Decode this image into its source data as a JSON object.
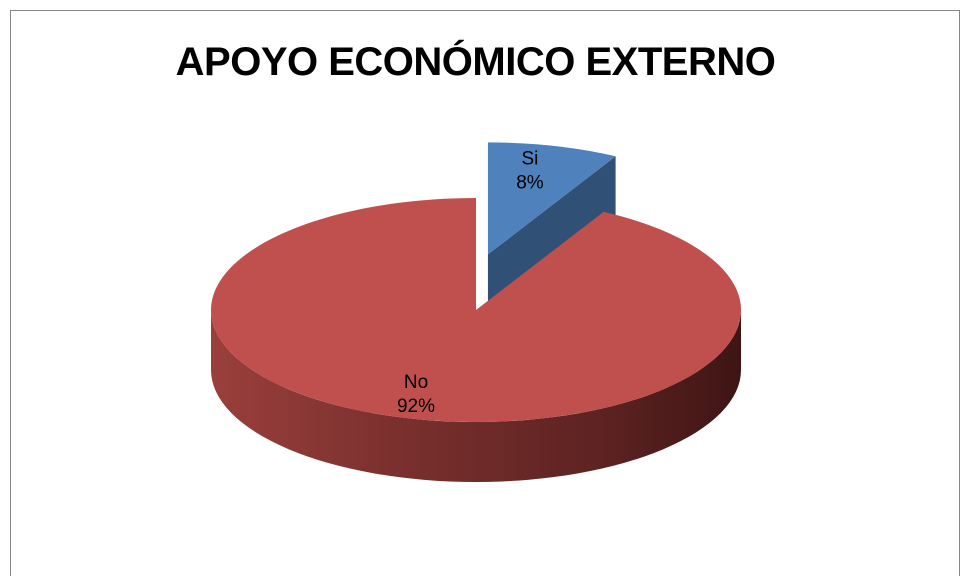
{
  "chart_data": {
    "type": "pie",
    "title": "APOYO ECONÓMICO EXTERNO",
    "slices": [
      {
        "name": "Si",
        "value": 8,
        "label": "8%",
        "color": "#4F81BD",
        "exploded": true
      },
      {
        "name": "No",
        "value": 92,
        "label": "92%",
        "color": "#C0504D",
        "exploded": false
      }
    ],
    "legend": "none",
    "style": "3d"
  }
}
